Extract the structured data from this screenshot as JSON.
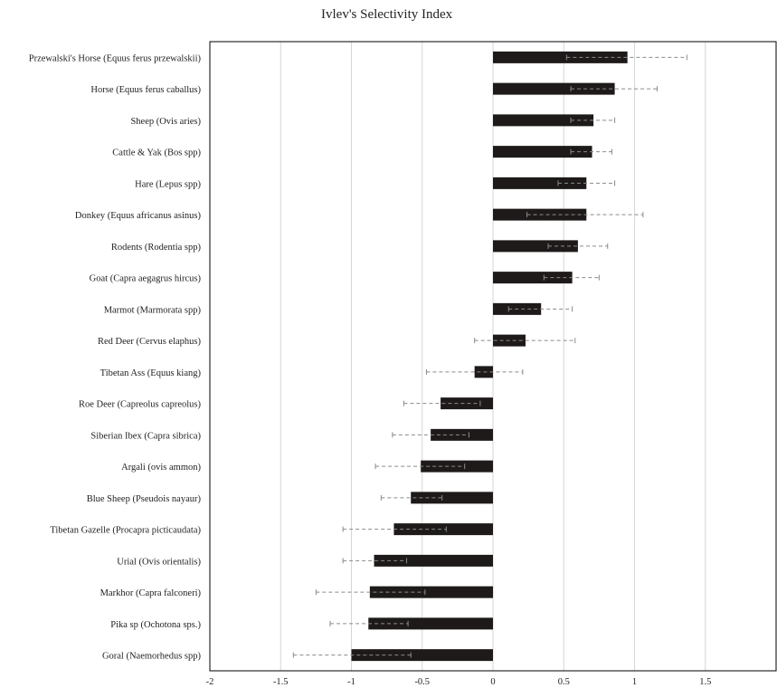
{
  "chart_data": {
    "type": "bar",
    "orientation": "horizontal",
    "title": "Ivlev's  Selectivity Index",
    "xlim": [
      -2,
      2
    ],
    "xticks": [
      -2,
      -1.5,
      -1,
      -0.5,
      0,
      0.5,
      1,
      1.5
    ],
    "xtick_labels": [
      "-2",
      "-1.5",
      "-1",
      "-0.5",
      "0",
      "0.5",
      "1",
      "1.5"
    ],
    "grid": true,
    "legend": "none",
    "colors": {
      "bar": "#1f1a1a",
      "error": "#8a8a8a",
      "grid": "#d6d6d6",
      "axis": "#000000"
    },
    "categories": [
      "Przewalski's Horse (Equus ferus przewalskii)",
      "Horse (Equus ferus caballus)",
      "Sheep (Ovis aries)",
      "Cattle & Yak (Bos spp)",
      "Hare (Lepus spp)",
      "Donkey (Equus africanus asinus)",
      "Rodents (Rodentia spp)",
      "Goat (Capra aegagrus hircus)",
      "Marmot (Marmorata spp)",
      "Red Deer  (Cervus elaphus)",
      "Tibetan Ass (Equus kiang)",
      "Roe Deer (Capreolus capreolus)",
      "Siberian Ibex (Capra sibrica)",
      "Argali (ovis ammon)",
      "Blue Sheep (Pseudois nayaur)",
      "Tibetan Gazelle (Procapra picticaudata)",
      "Urial (Ovis orientalis)",
      "Markhor (Capra falconeri)",
      "Pika sp (Ochotona sps.)",
      "Goral (Naemorhedus spp)"
    ],
    "values": [
      0.95,
      0.86,
      0.71,
      0.7,
      0.66,
      0.66,
      0.6,
      0.56,
      0.34,
      0.23,
      -0.13,
      -0.37,
      -0.44,
      -0.51,
      -0.58,
      -0.7,
      -0.84,
      -0.87,
      -0.88,
      -1.0
    ],
    "error_low": [
      0.52,
      0.55,
      0.55,
      0.55,
      0.46,
      0.24,
      0.39,
      0.36,
      0.11,
      -0.13,
      -0.47,
      -0.63,
      -0.71,
      -0.83,
      -0.79,
      -1.06,
      -1.06,
      -1.25,
      -1.15,
      -1.41
    ],
    "error_high": [
      1.37,
      1.16,
      0.86,
      0.84,
      0.86,
      1.06,
      0.81,
      0.75,
      0.56,
      0.58,
      0.21,
      -0.09,
      -0.17,
      -0.2,
      -0.36,
      -0.33,
      -0.61,
      -0.48,
      -0.6,
      -0.58
    ]
  }
}
